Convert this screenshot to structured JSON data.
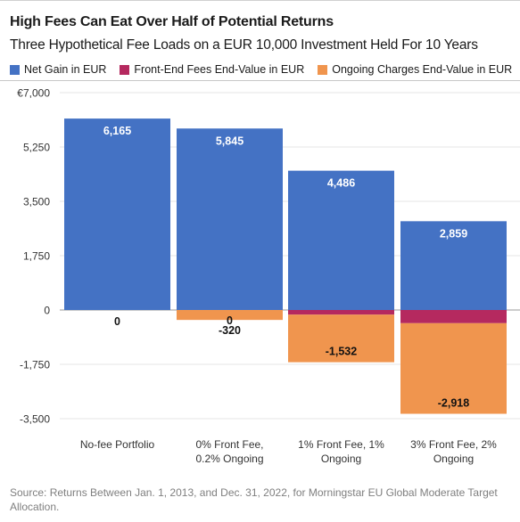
{
  "title": "High Fees Can Eat Over Half of Potential Returns",
  "subtitle": "Three Hypothetical Fee Loads on a EUR 10,000 Investment Held For 10 Years",
  "source": "Source: Returns Between Jan. 1, 2013, and Dec. 31, 2022, for Morningstar EU Global Moderate Target Allocation.",
  "colors": {
    "net_gain": "#4472c4",
    "front_end": "#b5295f",
    "ongoing": "#f0954e",
    "grid": "#e6e6e6",
    "axis_text": "#333333"
  },
  "chart_data": {
    "type": "bar",
    "stacked": true,
    "categories": [
      "No-fee Portfolio",
      "0% Front Fee, 0.2% Ongoing",
      "1% Front Fee, 1% Ongoing",
      "3% Front Fee, 2% Ongoing"
    ],
    "category_lines": [
      [
        "No-fee Portfolio"
      ],
      [
        "0% Front Fee,",
        "0.2% Ongoing"
      ],
      [
        "1% Front Fee, 1%",
        "Ongoing"
      ],
      [
        "3% Front Fee, 2%",
        "Ongoing"
      ]
    ],
    "series": [
      {
        "name": "Net Gain in EUR",
        "values": [
          6165,
          5845,
          4486,
          2859
        ]
      },
      {
        "name": "Front-End Fees End-Value in EUR",
        "values": [
          0,
          0,
          -150,
          -425
        ]
      },
      {
        "name": "Ongoing Charges End-Value in EUR",
        "values": [
          0,
          -320,
          -1532,
          -2918
        ]
      }
    ],
    "value_labels": {
      "net_gain": [
        "6,165",
        "5,845",
        "4,486",
        "2,859"
      ],
      "ongoing": [
        "0",
        "-320",
        "-1,532",
        "-2,918"
      ],
      "zero": [
        "0",
        "0"
      ]
    },
    "yticks": [
      7000,
      5250,
      3500,
      1750,
      0,
      -1750,
      -3500
    ],
    "ytick_labels": [
      "€7,000",
      "5,250",
      "3,500",
      "1,750",
      "0",
      "-1,750",
      "-3,500"
    ],
    "ylim": [
      -3500,
      7000
    ],
    "xlabel": "",
    "ylabel": "",
    "grid": true,
    "legend_position": "top-left"
  }
}
